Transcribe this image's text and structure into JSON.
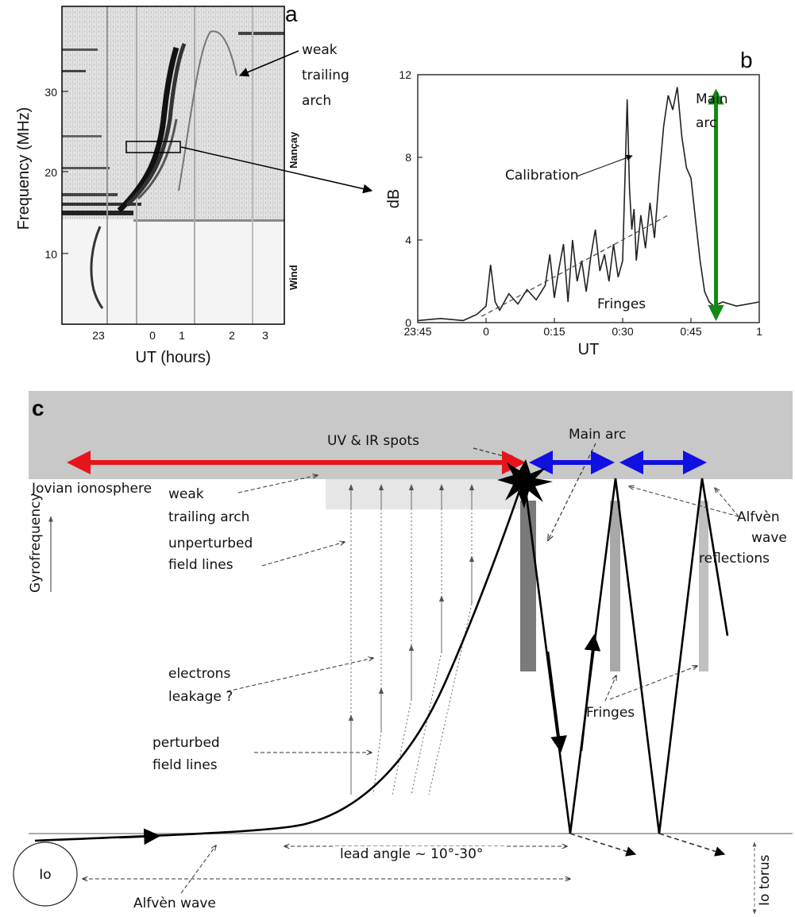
{
  "panel_a": {
    "letter": "a",
    "ylabel": "Frequency  (MHz)",
    "xlabel": "UT   (hours)",
    "yticks": [
      "30",
      "20",
      "10"
    ],
    "xticks": [
      "23",
      "0",
      "1",
      "2",
      "3"
    ],
    "side_labels": [
      "Nançay",
      "Wind"
    ],
    "annotation": [
      "weak",
      "trailing",
      "arch"
    ]
  },
  "panel_b": {
    "letter": "b",
    "annotations": {
      "main_arc": [
        "Main",
        "arc"
      ],
      "calibration": "Calibration",
      "fringes": "Fringes"
    }
  },
  "panel_c": {
    "letter": "c",
    "labels": {
      "uv_ir": "UV & IR spots",
      "main_arc": "Main arc",
      "ionosphere": "Jovian ionosphere",
      "weak_arch": [
        "weak",
        "trailing arch"
      ],
      "gyrofrequency": "Gyrofrequency",
      "unperturbed": [
        "unperturbed",
        "field lines"
      ],
      "electrons": [
        "electrons",
        "leakage ?"
      ],
      "perturbed": [
        "perturbed",
        "field lines"
      ],
      "fringes": "Fringes",
      "alfven_refl": [
        "Alfvèn",
        "wave",
        "reflections"
      ],
      "lead_angle": "lead angle ~ 10°-30°",
      "io": "Io",
      "alfven_wave": "Alfvèn wave",
      "io_torus": "Io torus"
    },
    "colors": {
      "red_arrow": "#e8141c",
      "blue_arrow": "#1010e0",
      "green_arrow": "#128a12",
      "band": "#c8c8c8",
      "ionosphere_strip": "#e6e6e6"
    }
  },
  "chart_data": {
    "type": "line",
    "title": "",
    "xlabel": "UT",
    "ylabel": "dB",
    "x_tick_labels": [
      "23:45",
      "0",
      "0:15",
      "0:30",
      "0:45",
      "1"
    ],
    "y_ticks": [
      0,
      4,
      8,
      12
    ],
    "xlim_minutes": [
      -15,
      60
    ],
    "ylim": [
      0,
      12
    ],
    "series": [
      {
        "name": "",
        "x_minutes": [
          -15,
          -10,
          -5,
          -2,
          0,
          1,
          2,
          3,
          5,
          7,
          9,
          11,
          13,
          14,
          15,
          16,
          17,
          18,
          19,
          20,
          21,
          22,
          23,
          24,
          25,
          26,
          27,
          28,
          29,
          30,
          31,
          31.5,
          32,
          32.5,
          33,
          34,
          35,
          36,
          37,
          38,
          39,
          40,
          41,
          42,
          43,
          44,
          45,
          46,
          47,
          48,
          49,
          50,
          52,
          55,
          60
        ],
        "values": [
          0.1,
          0.2,
          0.1,
          0.4,
          0.8,
          2.8,
          1.0,
          0.6,
          1.4,
          0.9,
          1.6,
          1.1,
          1.8,
          3.3,
          1.2,
          2.6,
          3.8,
          1.0,
          4.0,
          2.0,
          3.0,
          1.5,
          3.2,
          4.5,
          2.5,
          3.3,
          2.0,
          3.8,
          2.2,
          3.0,
          10.8,
          6.5,
          4.5,
          5.5,
          3.0,
          5.2,
          3.6,
          5.8,
          4.1,
          7.0,
          9.5,
          11.0,
          10.3,
          11.4,
          9.0,
          7.5,
          7.0,
          5.0,
          3.0,
          1.5,
          1.0,
          0.8,
          1.0,
          0.8,
          1.0
        ]
      },
      {
        "name": "",
        "x_minutes": [
          -1,
          40
        ],
        "values": [
          0.3,
          5.2
        ]
      }
    ],
    "double_arrow_x_minutes": 50.5
  }
}
